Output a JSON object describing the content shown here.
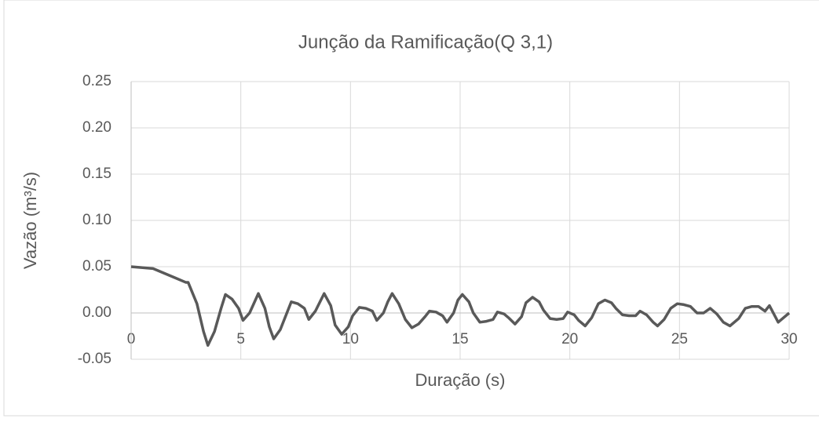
{
  "chart_data": {
    "type": "line",
    "title": "Junção da Ramificação(Q 3,1)",
    "xlabel": "Duração (s)",
    "ylabel": "Vazão (m³/s)",
    "xlim": [
      0,
      30
    ],
    "xticks": [
      0,
      5,
      10,
      15,
      20,
      25,
      30
    ],
    "ylim": [
      -0.05,
      0.25
    ],
    "yticks": [
      {
        "value": -0.05,
        "label": "-0.05"
      },
      {
        "value": 0,
        "label": "0.00"
      },
      {
        "value": 0.05,
        "label": "0.05"
      },
      {
        "value": 0.1,
        "label": "0.10"
      },
      {
        "value": 0.15,
        "label": "0.15"
      },
      {
        "value": 0.2,
        "label": "0.20"
      },
      {
        "value": 0.25,
        "label": "0.25"
      }
    ],
    "grid": true,
    "series": [
      {
        "color": "#595959",
        "x": [
          0,
          1,
          2,
          2.5,
          2.6,
          3,
          3.3,
          3.5,
          3.8,
          4.1,
          4.3,
          4.6,
          4.9,
          5.1,
          5.4,
          5.8,
          6.1,
          6.3,
          6.5,
          6.8,
          7.1,
          7.3,
          7.6,
          7.9,
          8.1,
          8.4,
          8.8,
          9.1,
          9.3,
          9.6,
          9.9,
          10.1,
          10.4,
          10.7,
          11.0,
          11.2,
          11.5,
          11.7,
          11.9,
          12.2,
          12.5,
          12.8,
          13.1,
          13.4,
          13.6,
          13.9,
          14.2,
          14.4,
          14.7,
          14.9,
          15.1,
          15.4,
          15.6,
          15.9,
          16.2,
          16.5,
          16.7,
          17.0,
          17.2,
          17.5,
          17.8,
          18.0,
          18.3,
          18.6,
          18.8,
          19.1,
          19.4,
          19.7,
          19.9,
          20.2,
          20.4,
          20.7,
          21.0,
          21.3,
          21.6,
          21.9,
          22.1,
          22.4,
          22.7,
          23.0,
          23.2,
          23.5,
          23.8,
          24.0,
          24.3,
          24.6,
          24.9,
          25.2,
          25.5,
          25.8,
          26.1,
          26.4,
          26.7,
          27.0,
          27.3,
          27.7,
          28.0,
          28.3,
          28.6,
          28.9,
          29.1,
          29.5,
          30
        ],
        "values": [
          0.05,
          0.048,
          0.038,
          0.033,
          0.033,
          0.01,
          -0.02,
          -0.035,
          -0.02,
          0.005,
          0.02,
          0.015,
          0.005,
          -0.008,
          0.0,
          0.021,
          0.005,
          -0.015,
          -0.028,
          -0.018,
          0.0,
          0.012,
          0.01,
          0.005,
          -0.007,
          0.002,
          0.021,
          0.008,
          -0.013,
          -0.023,
          -0.015,
          -0.003,
          0.006,
          0.005,
          0.002,
          -0.008,
          0.0,
          0.012,
          0.021,
          0.01,
          -0.007,
          -0.016,
          -0.012,
          -0.004,
          0.002,
          0.001,
          -0.003,
          -0.01,
          0.0,
          0.014,
          0.02,
          0.012,
          0.0,
          -0.01,
          -0.009,
          -0.007,
          0.001,
          -0.001,
          -0.005,
          -0.012,
          -0.004,
          0.011,
          0.017,
          0.012,
          0.003,
          -0.006,
          -0.007,
          -0.006,
          0.001,
          -0.002,
          -0.008,
          -0.014,
          -0.005,
          0.01,
          0.014,
          0.011,
          0.005,
          -0.002,
          -0.003,
          -0.003,
          0.002,
          -0.002,
          -0.01,
          -0.014,
          -0.007,
          0.005,
          0.01,
          0.009,
          0.007,
          0.0,
          0.0,
          0.005,
          -0.001,
          -0.01,
          -0.014,
          -0.006,
          0.005,
          0.007,
          0.007,
          0.002,
          0.008,
          -0.01,
          0.0
        ]
      }
    ]
  }
}
